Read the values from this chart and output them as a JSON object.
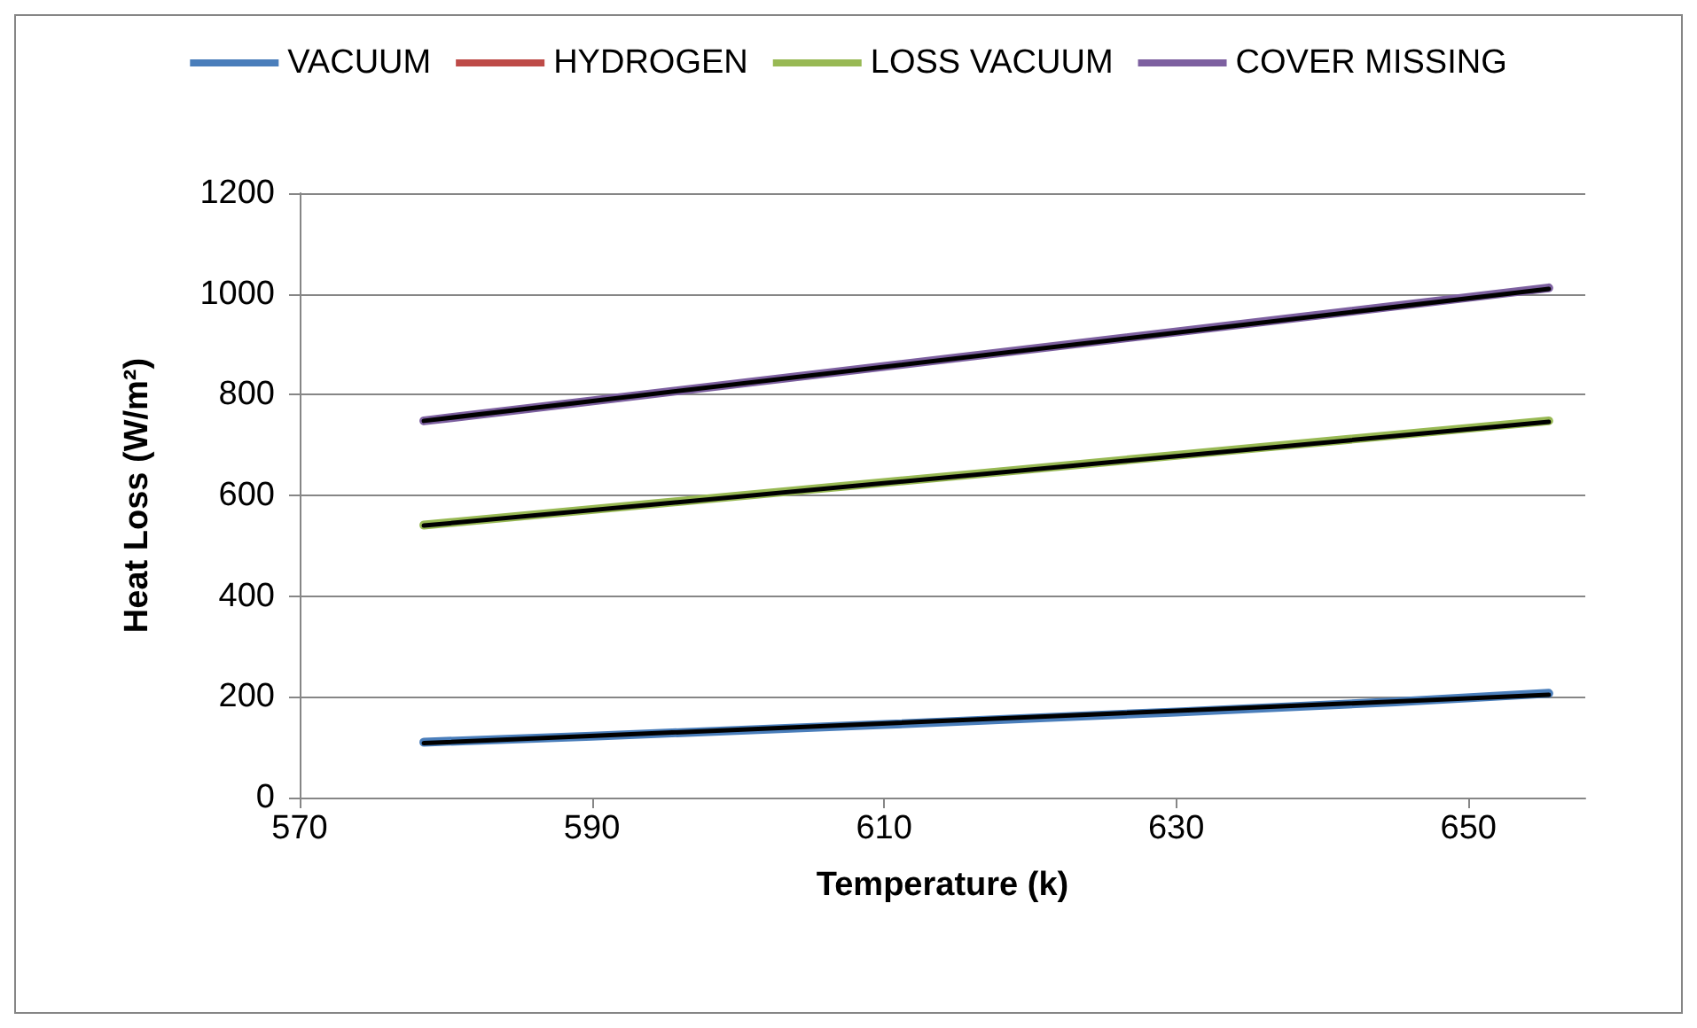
{
  "chart_data": {
    "type": "line",
    "xlabel": "Temperature (k)",
    "ylabel": "Heat Loss (W/m²)",
    "xlim": [
      570,
      658
    ],
    "xticks": [
      570,
      590,
      610,
      630,
      650
    ],
    "ylim": [
      0,
      1200
    ],
    "yticks": [
      0,
      200,
      400,
      600,
      800,
      1000,
      1200
    ],
    "grid": "y",
    "legend": "top",
    "marker": "none",
    "line_style": "solid",
    "series": [
      {
        "name": "VACUUM",
        "color": "#4a7ebb",
        "x": [
          578.5,
          590,
          610,
          630,
          645,
          655.5
        ],
        "values": [
          110,
          122,
          145,
          170,
          190,
          207
        ]
      },
      {
        "name": "HYDROGEN",
        "color": "#be4b48"
      },
      {
        "name": "LOSS VACUUM",
        "color": "#98b954",
        "x": [
          578.5,
          655.5
        ],
        "values": [
          541,
          748
        ]
      },
      {
        "name": "COVER MISSING",
        "color": "#7d60a0",
        "x": [
          578.5,
          655.5
        ],
        "values": [
          748,
          1012
        ]
      },
      {
        "type": "line",
        "color": "#000000",
        "x": [
          578.5,
          655.5
        ],
        "values": [
          108,
          204
        ]
      },
      {
        "type": "line",
        "color": "#000000",
        "x": [
          578.5,
          655.5
        ],
        "values": [
          540,
          746
        ]
      },
      {
        "type": "line",
        "color": "#000000",
        "x": [
          578.5,
          655.5
        ],
        "values": [
          748,
          1010
        ]
      }
    ]
  }
}
